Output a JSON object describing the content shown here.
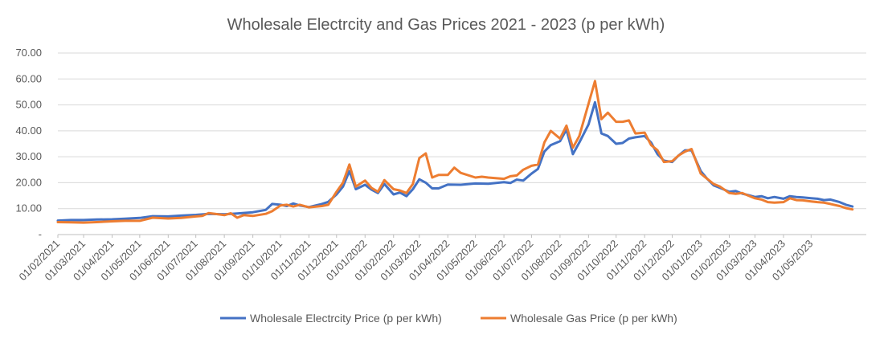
{
  "chart_data": {
    "type": "line",
    "title": "Wholesale Electrcity and Gas Prices 2021 - 2023 (p per kWh)",
    "xlabel": "",
    "ylabel": "",
    "ylim": [
      0,
      70
    ],
    "yticks": [
      {
        "value": 0,
        "label": "-"
      },
      {
        "value": 10,
        "label": "10.00"
      },
      {
        "value": 20,
        "label": "20.00"
      },
      {
        "value": 30,
        "label": "30.00"
      },
      {
        "value": 40,
        "label": "40.00"
      },
      {
        "value": 50,
        "label": "50.00"
      },
      {
        "value": 60,
        "label": "60.00"
      },
      {
        "value": 70,
        "label": "70.00"
      }
    ],
    "x_tick_labels": [
      "01/02/2021",
      "01/03/2021",
      "01/04/2021",
      "01/05/2021",
      "01/06/2021",
      "01/07/2021",
      "01/08/2021",
      "01/09/2021",
      "01/10/2021",
      "01/11/2021",
      "01/12/2021",
      "01/01/2022",
      "01/02/2022",
      "01/03/2022",
      "01/04/2022",
      "01/05/2022",
      "01/06/2022",
      "01/07/2022",
      "01/08/2022",
      "01/09/2022",
      "01/10/2022",
      "01/11/2022",
      "01/12/2022",
      "01/01/2023",
      "01/02/2023",
      "01/03/2023",
      "01/04/2023",
      "01/05/2023"
    ],
    "x_range": [
      "01/02/2021",
      "30/06/2023"
    ],
    "grid": true,
    "legend_position": "bottom",
    "series": [
      {
        "name": "Wholesale Electrcity Price (p per kWh)",
        "color": "#4472c4",
        "points": [
          [
            "01/02/2021",
            5.4
          ],
          [
            "15/02/2021",
            5.6
          ],
          [
            "01/03/2021",
            5.6
          ],
          [
            "15/03/2021",
            5.8
          ],
          [
            "01/04/2021",
            5.9
          ],
          [
            "15/04/2021",
            6.1
          ],
          [
            "01/05/2021",
            6.4
          ],
          [
            "15/05/2021",
            7.1
          ],
          [
            "01/06/2021",
            7.0
          ],
          [
            "15/06/2021",
            7.3
          ],
          [
            "01/07/2021",
            7.6
          ],
          [
            "15/07/2021",
            8.0
          ],
          [
            "01/08/2021",
            7.8
          ],
          [
            "15/08/2021",
            8.1
          ],
          [
            "01/09/2021",
            8.6
          ],
          [
            "15/09/2021",
            9.5
          ],
          [
            "22/09/2021",
            11.8
          ],
          [
            "01/10/2021",
            11.5
          ],
          [
            "08/10/2021",
            11.0
          ],
          [
            "15/10/2021",
            12.0
          ],
          [
            "22/10/2021",
            11.2
          ],
          [
            "01/11/2021",
            10.6
          ],
          [
            "15/11/2021",
            11.8
          ],
          [
            "22/11/2021",
            12.6
          ],
          [
            "01/12/2021",
            15.5
          ],
          [
            "08/12/2021",
            18.5
          ],
          [
            "15/12/2021",
            24.5
          ],
          [
            "22/12/2021",
            17.5
          ],
          [
            "01/01/2022",
            19.2
          ],
          [
            "08/01/2022",
            17.3
          ],
          [
            "15/01/2022",
            16.0
          ],
          [
            "22/01/2022",
            19.5
          ],
          [
            "01/02/2022",
            15.5
          ],
          [
            "08/02/2022",
            16.2
          ],
          [
            "15/02/2022",
            14.8
          ],
          [
            "22/02/2022",
            17.5
          ],
          [
            "01/03/2022",
            21.3
          ],
          [
            "08/03/2022",
            20.0
          ],
          [
            "15/03/2022",
            17.8
          ],
          [
            "22/03/2022",
            17.8
          ],
          [
            "01/04/2022",
            19.3
          ],
          [
            "15/04/2022",
            19.2
          ],
          [
            "01/05/2022",
            19.7
          ],
          [
            "15/05/2022",
            19.6
          ],
          [
            "01/06/2022",
            20.2
          ],
          [
            "08/06/2022",
            19.9
          ],
          [
            "15/06/2022",
            21.2
          ],
          [
            "22/06/2022",
            20.8
          ],
          [
            "01/07/2022",
            23.5
          ],
          [
            "08/07/2022",
            25.3
          ],
          [
            "15/07/2022",
            32.0
          ],
          [
            "22/07/2022",
            34.5
          ],
          [
            "01/08/2022",
            36.0
          ],
          [
            "08/08/2022",
            40.5
          ],
          [
            "15/08/2022",
            31.0
          ],
          [
            "22/08/2022",
            35.5
          ],
          [
            "01/09/2022",
            42.5
          ],
          [
            "08/09/2022",
            51.0
          ],
          [
            "15/09/2022",
            39.0
          ],
          [
            "22/09/2022",
            38.0
          ],
          [
            "01/10/2022",
            35.0
          ],
          [
            "08/10/2022",
            35.3
          ],
          [
            "15/10/2022",
            37.0
          ],
          [
            "22/10/2022",
            37.5
          ],
          [
            "01/11/2022",
            38.0
          ],
          [
            "08/11/2022",
            35.5
          ],
          [
            "15/11/2022",
            31.0
          ],
          [
            "22/11/2022",
            28.5
          ],
          [
            "01/12/2022",
            28.0
          ],
          [
            "08/12/2022",
            30.5
          ],
          [
            "15/12/2022",
            32.5
          ],
          [
            "22/12/2022",
            32.5
          ],
          [
            "01/01/2023",
            24.5
          ],
          [
            "08/01/2023",
            21.5
          ],
          [
            "15/01/2023",
            19.0
          ],
          [
            "22/01/2023",
            18.0
          ],
          [
            "01/02/2023",
            16.5
          ],
          [
            "08/02/2023",
            16.8
          ],
          [
            "15/02/2023",
            15.8
          ],
          [
            "22/02/2023",
            15.2
          ],
          [
            "01/03/2023",
            14.5
          ],
          [
            "08/03/2023",
            14.8
          ],
          [
            "15/03/2023",
            14.0
          ],
          [
            "22/03/2023",
            14.5
          ],
          [
            "01/04/2023",
            13.8
          ],
          [
            "08/04/2023",
            14.8
          ],
          [
            "15/04/2023",
            14.5
          ],
          [
            "22/04/2023",
            14.3
          ],
          [
            "01/05/2023",
            14.0
          ],
          [
            "08/05/2023",
            13.8
          ],
          [
            "15/05/2023",
            13.3
          ],
          [
            "22/05/2023",
            13.5
          ],
          [
            "01/06/2023",
            12.5
          ],
          [
            "08/06/2023",
            11.5
          ],
          [
            "15/06/2023",
            10.8
          ]
        ]
      },
      {
        "name": "Wholesale Gas Price (p per kWh)",
        "color": "#ed7d31",
        "points": [
          [
            "01/02/2021",
            4.8
          ],
          [
            "15/02/2021",
            4.7
          ],
          [
            "01/03/2021",
            4.6
          ],
          [
            "15/03/2021",
            4.8
          ],
          [
            "01/04/2021",
            5.1
          ],
          [
            "15/04/2021",
            5.3
          ],
          [
            "01/05/2021",
            5.3
          ],
          [
            "15/05/2021",
            6.5
          ],
          [
            "01/06/2021",
            6.2
          ],
          [
            "15/06/2021",
            6.4
          ],
          [
            "01/07/2021",
            7.0
          ],
          [
            "08/07/2021",
            7.2
          ],
          [
            "15/07/2021",
            8.3
          ],
          [
            "22/07/2021",
            8.0
          ],
          [
            "01/08/2021",
            7.5
          ],
          [
            "08/08/2021",
            8.2
          ],
          [
            "15/08/2021",
            6.5
          ],
          [
            "22/08/2021",
            7.5
          ],
          [
            "01/09/2021",
            7.2
          ],
          [
            "15/09/2021",
            8.0
          ],
          [
            "22/09/2021",
            9.0
          ],
          [
            "01/10/2021",
            11.2
          ],
          [
            "08/10/2021",
            11.5
          ],
          [
            "15/10/2021",
            10.8
          ],
          [
            "22/10/2021",
            11.5
          ],
          [
            "01/11/2021",
            10.5
          ],
          [
            "15/11/2021",
            11.0
          ],
          [
            "22/11/2021",
            11.5
          ],
          [
            "01/12/2021",
            16.5
          ],
          [
            "08/12/2021",
            20.0
          ],
          [
            "15/12/2021",
            27.0
          ],
          [
            "22/12/2021",
            18.5
          ],
          [
            "01/01/2022",
            20.8
          ],
          [
            "08/01/2022",
            18.0
          ],
          [
            "15/01/2022",
            16.5
          ],
          [
            "22/01/2022",
            21.0
          ],
          [
            "01/02/2022",
            17.5
          ],
          [
            "08/02/2022",
            17.0
          ],
          [
            "15/02/2022",
            16.0
          ],
          [
            "22/02/2022",
            19.5
          ],
          [
            "01/03/2022",
            29.5
          ],
          [
            "08/03/2022",
            31.3
          ],
          [
            "15/03/2022",
            22.0
          ],
          [
            "22/03/2022",
            23.0
          ],
          [
            "01/04/2022",
            23.0
          ],
          [
            "08/04/2022",
            25.8
          ],
          [
            "15/04/2022",
            23.8
          ],
          [
            "01/05/2022",
            22.0
          ],
          [
            "08/05/2022",
            22.3
          ],
          [
            "15/05/2022",
            22.0
          ],
          [
            "01/06/2022",
            21.5
          ],
          [
            "08/06/2022",
            22.5
          ],
          [
            "15/06/2022",
            22.8
          ],
          [
            "22/06/2022",
            25.0
          ],
          [
            "01/07/2022",
            26.5
          ],
          [
            "08/07/2022",
            27.0
          ],
          [
            "15/07/2022",
            35.5
          ],
          [
            "22/07/2022",
            40.0
          ],
          [
            "01/08/2022",
            37.0
          ],
          [
            "08/08/2022",
            42.0
          ],
          [
            "15/08/2022",
            33.5
          ],
          [
            "22/08/2022",
            38.0
          ],
          [
            "01/09/2022",
            50.5
          ],
          [
            "08/09/2022",
            59.2
          ],
          [
            "15/09/2022",
            44.5
          ],
          [
            "22/09/2022",
            47.0
          ],
          [
            "01/10/2022",
            43.5
          ],
          [
            "08/10/2022",
            43.5
          ],
          [
            "15/10/2022",
            44.0
          ],
          [
            "22/10/2022",
            39.0
          ],
          [
            "01/11/2022",
            39.3
          ],
          [
            "08/11/2022",
            34.5
          ],
          [
            "15/11/2022",
            32.5
          ],
          [
            "22/11/2022",
            28.0
          ],
          [
            "01/12/2022",
            28.3
          ],
          [
            "08/12/2022",
            30.5
          ],
          [
            "15/12/2022",
            32.0
          ],
          [
            "22/12/2022",
            33.0
          ],
          [
            "01/01/2023",
            23.5
          ],
          [
            "08/01/2023",
            21.5
          ],
          [
            "15/01/2023",
            19.5
          ],
          [
            "22/01/2023",
            18.5
          ],
          [
            "01/02/2023",
            16.0
          ],
          [
            "08/02/2023",
            15.7
          ],
          [
            "15/02/2023",
            16.0
          ],
          [
            "22/02/2023",
            15.0
          ],
          [
            "01/03/2023",
            14.0
          ],
          [
            "08/03/2023",
            13.5
          ],
          [
            "15/03/2023",
            12.5
          ],
          [
            "22/03/2023",
            12.3
          ],
          [
            "01/04/2023",
            12.5
          ],
          [
            "08/04/2023",
            14.0
          ],
          [
            "15/04/2023",
            13.3
          ],
          [
            "22/04/2023",
            13.2
          ],
          [
            "01/05/2023",
            12.8
          ],
          [
            "08/05/2023",
            12.5
          ],
          [
            "15/05/2023",
            12.3
          ],
          [
            "22/05/2023",
            11.8
          ],
          [
            "01/06/2023",
            11.0
          ],
          [
            "08/06/2023",
            10.2
          ],
          [
            "15/06/2023",
            9.7
          ]
        ]
      }
    ]
  }
}
